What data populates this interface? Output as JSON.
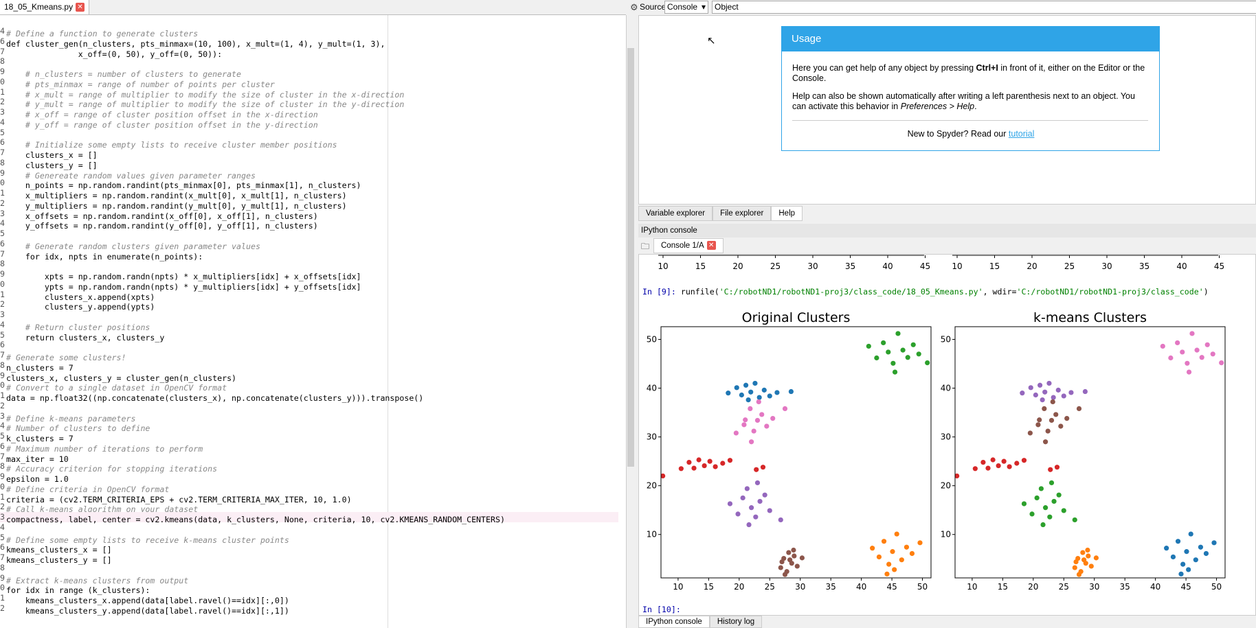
{
  "editor": {
    "tab": "18_05_Kmeans.py",
    "lines": [
      [
        "4",
        "# Define a function to generate clusters"
      ],
      [
        "6",
        "def cluster_gen(n_clusters, pts_minmax=(10, 100), x_mult=(1, 4), y_mult=(1, 3),"
      ],
      [
        "7",
        "               x_off=(0, 50), y_off=(0, 50)):"
      ],
      [
        "8"
      ],
      [
        "9",
        "    # n_clusters = number of clusters to generate"
      ],
      [
        "0",
        "    # pts_minmax = range of number of points per cluster"
      ],
      [
        "1",
        "    # x_mult = range of multiplier to modify the size of cluster in the x-direction"
      ],
      [
        "2",
        "    # y_mult = range of multiplier to modify the size of cluster in the y-direction"
      ],
      [
        "3",
        "    # x_off = range of cluster position offset in the x-direction"
      ],
      [
        "4",
        "    # y_off = range of cluster position offset in the y-direction"
      ],
      [
        "5"
      ],
      [
        "6",
        "    # Initialize some empty lists to receive cluster member positions"
      ],
      [
        "7",
        "    clusters_x = []"
      ],
      [
        "8",
        "    clusters_y = []"
      ],
      [
        "9",
        "    # Genereate random values given parameter ranges"
      ],
      [
        "0",
        "    n_points = np.random.randint(pts_minmax[0], pts_minmax[1], n_clusters)"
      ],
      [
        "1",
        "    x_multipliers = np.random.randint(x_mult[0], x_mult[1], n_clusters)"
      ],
      [
        "2",
        "    y_multipliers = np.random.randint(y_mult[0], y_mult[1], n_clusters)"
      ],
      [
        "3",
        "    x_offsets = np.random.randint(x_off[0], x_off[1], n_clusters)"
      ],
      [
        "4",
        "    y_offsets = np.random.randint(y_off[0], y_off[1], n_clusters)"
      ],
      [
        "5"
      ],
      [
        "6",
        "    # Generate random clusters given parameter values"
      ],
      [
        "7",
        "    for idx, npts in enumerate(n_points):"
      ],
      [
        "8"
      ],
      [
        "9",
        "        xpts = np.random.randn(npts) * x_multipliers[idx] + x_offsets[idx]"
      ],
      [
        "0",
        "        ypts = np.random.randn(npts) * y_multipliers[idx] + y_offsets[idx]"
      ],
      [
        "1",
        "        clusters_x.append(xpts)"
      ],
      [
        "2",
        "        clusters_y.append(ypts)"
      ],
      [
        "3"
      ],
      [
        "4",
        "    # Return cluster positions"
      ],
      [
        "5",
        "    return clusters_x, clusters_y"
      ],
      [
        "6"
      ],
      [
        "7",
        "# Generate some clusters!"
      ],
      [
        "8",
        "n_clusters = 7"
      ],
      [
        "9",
        "clusters_x, clusters_y = cluster_gen(n_clusters)"
      ],
      [
        "0",
        "# Convert to a single dataset in OpenCV format"
      ],
      [
        "1",
        "data = np.float32((np.concatenate(clusters_x), np.concatenate(clusters_y))).transpose()"
      ],
      [
        "2"
      ],
      [
        "3",
        "# Define k-means parameters"
      ],
      [
        "4",
        "# Number of clusters to define"
      ],
      [
        "5",
        "k_clusters = 7"
      ],
      [
        "6",
        "# Maximum number of iterations to perform"
      ],
      [
        "7",
        "max_iter = 10"
      ],
      [
        "8",
        "# Accuracy criterion for stopping iterations"
      ],
      [
        "9",
        "epsilon = 1.0"
      ],
      [
        "0",
        "# Define criteria in OpenCV format"
      ],
      [
        "1",
        "criteria = (cv2.TERM_CRITERIA_EPS + cv2.TERM_CRITERIA_MAX_ITER, 10, 1.0)"
      ],
      [
        "2",
        "# Call k-means algorithm on your dataset"
      ],
      [
        "3",
        "compactness, label, center = cv2.kmeans(data, k_clusters, None, criteria, 10, cv2.KMEANS_RANDOM_CENTERS)"
      ],
      [
        "4"
      ],
      [
        "5",
        "# Define some empty lists to receive k-means cluster points"
      ],
      [
        "6",
        "kmeans_clusters_x = []"
      ],
      [
        "7",
        "kmeans_clusters_y = []"
      ],
      [
        "8"
      ],
      [
        "9",
        "# Extract k-means clusters from output"
      ],
      [
        "0",
        "for idx in range (k_clusters):"
      ],
      [
        "1",
        "    kmeans_clusters_x.append(data[label.ravel()==idx][:,0])"
      ],
      [
        "2",
        "    kmeans_clusters_y.append(data[label.ravel()==idx][:,1])"
      ]
    ]
  },
  "toolbar": {
    "source": "Source",
    "select": "Console",
    "object": "Object"
  },
  "help": {
    "title": "Usage",
    "p1": [
      "Here you can get help of any object by pressing ",
      "Ctrl+I",
      " in front of it, either on the Editor or the Console."
    ],
    "p2": [
      "Help can also be shown automatically after writing a left parenthesis next to an object. You can activate this behavior in ",
      "Preferences > Help",
      "."
    ],
    "p3": [
      "New to Spyder? Read our ",
      "tutorial"
    ],
    "tabs": [
      "Variable explorer",
      "File explorer",
      "Help"
    ]
  },
  "console": {
    "header": "IPython console",
    "tab": "Console 1/A",
    "prev_xticks": [
      [
        10,
        15,
        20,
        25,
        30,
        35,
        40,
        45
      ],
      [
        10,
        15,
        20,
        25,
        30,
        35,
        40,
        45
      ]
    ],
    "in9": [
      "In [9]: ",
      "runfile(",
      "'C:/robotND1/robotND1-proj3/class_code/18_05_Kmeans.py'",
      ", wdir=",
      "'C:/robotND1/robotND1-proj3/class_code'",
      ")"
    ],
    "in10": "In [10]:",
    "bottom_tabs": [
      "IPython console",
      "History log"
    ]
  },
  "chart_data": [
    {
      "type": "scatter",
      "title": "Original Clusters",
      "xlim": [
        7.2,
        51.4
      ],
      "ylim": [
        1.1,
        52.6
      ],
      "xticks": [
        10,
        15,
        20,
        25,
        30,
        35,
        40,
        45,
        50
      ],
      "yticks": [
        10,
        20,
        30,
        40,
        50
      ],
      "series": [
        {
          "color": "#1f77b4",
          "x": [
            18.2,
            19.6,
            20.4,
            21.1,
            21.9,
            22.6,
            23.3,
            24.1,
            25.0,
            26.2,
            21.5,
            28.5
          ],
          "y": [
            39.0,
            40.1,
            38.6,
            40.6,
            39.2,
            41.0,
            38.1,
            39.6,
            38.4,
            39.1,
            37.6,
            39.3
          ]
        },
        {
          "color": "#e377c2",
          "x": [
            19.5,
            21,
            21.8,
            22.4,
            23,
            23.7,
            24.5,
            22,
            20.8,
            25.5,
            23.2,
            27.5
          ],
          "y": [
            30.8,
            33.5,
            35.8,
            31.2,
            33.4,
            34.6,
            32.2,
            29.0,
            32.5,
            33.8,
            37.2,
            35.8
          ]
        },
        {
          "color": "#d62728",
          "x": [
            7.5,
            10.5,
            11.8,
            12.6,
            13.4,
            14.3,
            15.2,
            16.1,
            17.3,
            18.5,
            22.8,
            23.9
          ],
          "y": [
            22.0,
            23.5,
            24.8,
            23.6,
            25.3,
            24.1,
            25.0,
            23.9,
            24.6,
            25.2,
            23.3,
            23.8
          ]
        },
        {
          "color": "#9467bd",
          "x": [
            18.5,
            19.8,
            20.6,
            21.3,
            22.0,
            22.7,
            23.4,
            24.2,
            25.0,
            21.6,
            23.0,
            26.8
          ],
          "y": [
            16.3,
            14.2,
            17.5,
            19.4,
            15.5,
            13.6,
            16.8,
            18.1,
            14.9,
            12.0,
            20.6,
            13.0
          ]
        },
        {
          "color": "#8c564b",
          "x": [
            26.8,
            27.3,
            27.8,
            28.1,
            28.6,
            29.0,
            29.5,
            27.5,
            28.3,
            30.3,
            28.9,
            27.0
          ],
          "y": [
            3.2,
            5.1,
            2.4,
            6.3,
            4.1,
            5.6,
            3.5,
            1.8,
            4.8,
            5.2,
            6.8,
            4.4
          ]
        },
        {
          "color": "#2ca02c",
          "x": [
            41.2,
            42.5,
            43.6,
            44.4,
            45.2,
            46.0,
            46.8,
            47.6,
            48.5,
            49.4,
            50.8,
            45.5
          ],
          "y": [
            48.6,
            46.2,
            49.3,
            47.4,
            45.1,
            51.2,
            47.8,
            46.3,
            48.9,
            47.0,
            45.2,
            43.3
          ]
        },
        {
          "color": "#ff7f0e",
          "x": [
            41.8,
            42.9,
            43.7,
            44.5,
            45.1,
            45.8,
            46.6,
            47.4,
            48.3,
            44.2,
            45.4,
            49.6
          ],
          "y": [
            7.2,
            5.4,
            8.6,
            3.9,
            6.5,
            10.1,
            4.8,
            7.4,
            6.1,
            1.9,
            2.8,
            8.3
          ]
        }
      ]
    },
    {
      "type": "scatter",
      "title": "k-means Clusters",
      "xlim": [
        7.2,
        51.4
      ],
      "ylim": [
        1.1,
        52.6
      ],
      "xticks": [
        10,
        15,
        20,
        25,
        30,
        35,
        40,
        45,
        50
      ],
      "yticks": [
        10,
        20,
        30,
        40,
        50
      ],
      "series": [
        {
          "color": "#9467bd",
          "x": [
            18.2,
            19.6,
            20.4,
            21.1,
            21.9,
            22.6,
            23.3,
            24.1,
            25.0,
            26.2,
            21.5,
            28.5
          ],
          "y": [
            39.0,
            40.1,
            38.6,
            40.6,
            39.2,
            41.0,
            38.1,
            39.6,
            38.4,
            39.1,
            37.6,
            39.3
          ]
        },
        {
          "color": "#8c564b",
          "x": [
            19.5,
            21,
            21.8,
            22.4,
            23,
            23.7,
            24.5,
            22,
            20.8,
            25.5,
            23.2,
            27.5
          ],
          "y": [
            30.8,
            33.5,
            35.8,
            31.2,
            33.4,
            34.6,
            32.2,
            29.0,
            32.5,
            33.8,
            37.2,
            35.8
          ]
        },
        {
          "color": "#d62728",
          "x": [
            7.5,
            10.5,
            11.8,
            12.6,
            13.4,
            14.3,
            15.2,
            16.1,
            17.3,
            18.5,
            22.8,
            23.9
          ],
          "y": [
            22.0,
            23.5,
            24.8,
            23.6,
            25.3,
            24.1,
            25.0,
            23.9,
            24.6,
            25.2,
            23.3,
            23.8
          ]
        },
        {
          "color": "#2ca02c",
          "x": [
            18.5,
            19.8,
            20.6,
            21.3,
            22.0,
            22.7,
            23.4,
            24.2,
            25.0,
            21.6,
            23.0,
            26.8
          ],
          "y": [
            16.3,
            14.2,
            17.5,
            19.4,
            15.5,
            13.6,
            16.8,
            18.1,
            14.9,
            12.0,
            20.6,
            13.0
          ]
        },
        {
          "color": "#ff7f0e",
          "x": [
            26.8,
            27.3,
            27.8,
            28.1,
            28.6,
            29.0,
            29.5,
            27.5,
            28.3,
            30.3,
            28.9,
            27.0
          ],
          "y": [
            3.2,
            5.1,
            2.4,
            6.3,
            4.1,
            5.6,
            3.5,
            1.8,
            4.8,
            5.2,
            6.8,
            4.4
          ]
        },
        {
          "color": "#e377c2",
          "x": [
            41.2,
            42.5,
            43.6,
            44.4,
            45.2,
            46.0,
            46.8,
            47.6,
            48.5,
            49.4,
            50.8,
            45.5
          ],
          "y": [
            48.6,
            46.2,
            49.3,
            47.4,
            45.1,
            51.2,
            47.8,
            46.3,
            48.9,
            47.0,
            45.2,
            43.3
          ]
        },
        {
          "color": "#1f77b4",
          "x": [
            41.8,
            42.9,
            43.7,
            44.5,
            45.1,
            45.8,
            46.6,
            47.4,
            48.3,
            44.2,
            45.4,
            49.6
          ],
          "y": [
            7.2,
            5.4,
            8.6,
            3.9,
            6.5,
            10.1,
            4.8,
            7.4,
            6.1,
            1.9,
            2.8,
            8.3
          ]
        }
      ]
    }
  ]
}
